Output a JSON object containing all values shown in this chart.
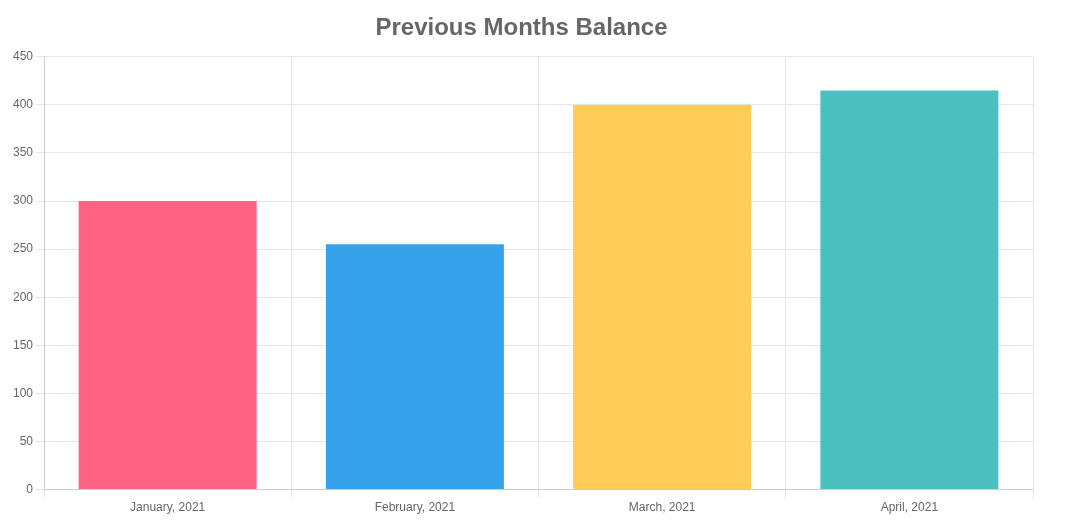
{
  "chart_data": {
    "type": "bar",
    "title": "Previous Months Balance",
    "categories": [
      "January, 2021",
      "February, 2021",
      "March, 2021",
      "April, 2021"
    ],
    "values": [
      300,
      255,
      400,
      415
    ],
    "colors": [
      "#ff6384",
      "#36a2eb",
      "#ffcd56",
      "#4bc0c0"
    ],
    "ylim": [
      0,
      450
    ],
    "yticks": [
      0,
      50,
      100,
      150,
      200,
      250,
      300,
      350,
      400,
      450
    ],
    "grid": true,
    "legend": false
  }
}
